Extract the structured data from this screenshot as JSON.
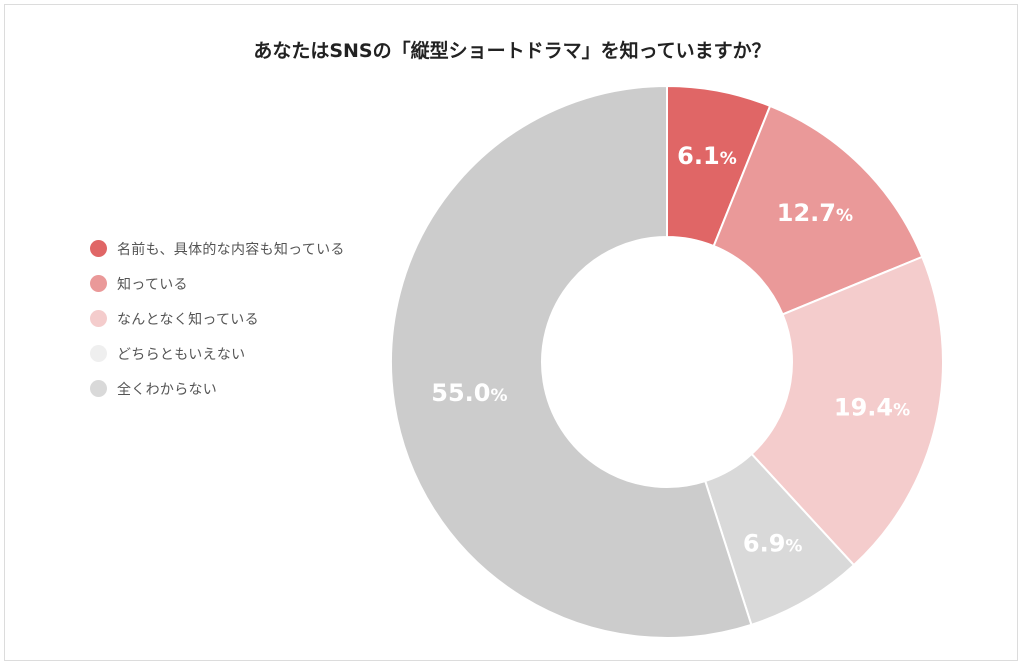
{
  "chart_data": {
    "type": "pie",
    "title": "あなたはSNSの「縦型ショートドラマ」を知っていますか？",
    "unit": "%",
    "categories": [
      "名前も、具体的な内容も知っている",
      "知っている",
      "なんとなく知っている",
      "どちらともいえない",
      "全くわからない"
    ],
    "values": [
      6.1,
      12.7,
      19.4,
      6.9,
      55.0
    ],
    "labels": [
      "6.1",
      "12.7",
      "19.4",
      "6.9",
      "55.0"
    ],
    "colors": [
      "#e06666",
      "#ea9999",
      "#f4cccc",
      "#d9d9d9",
      "#cccccc"
    ],
    "legend_colors": [
      "#e06666",
      "#ea9999",
      "#f4cccc",
      "#efefef",
      "#d9d9d9"
    ],
    "legend_position": "left",
    "donut": true
  }
}
